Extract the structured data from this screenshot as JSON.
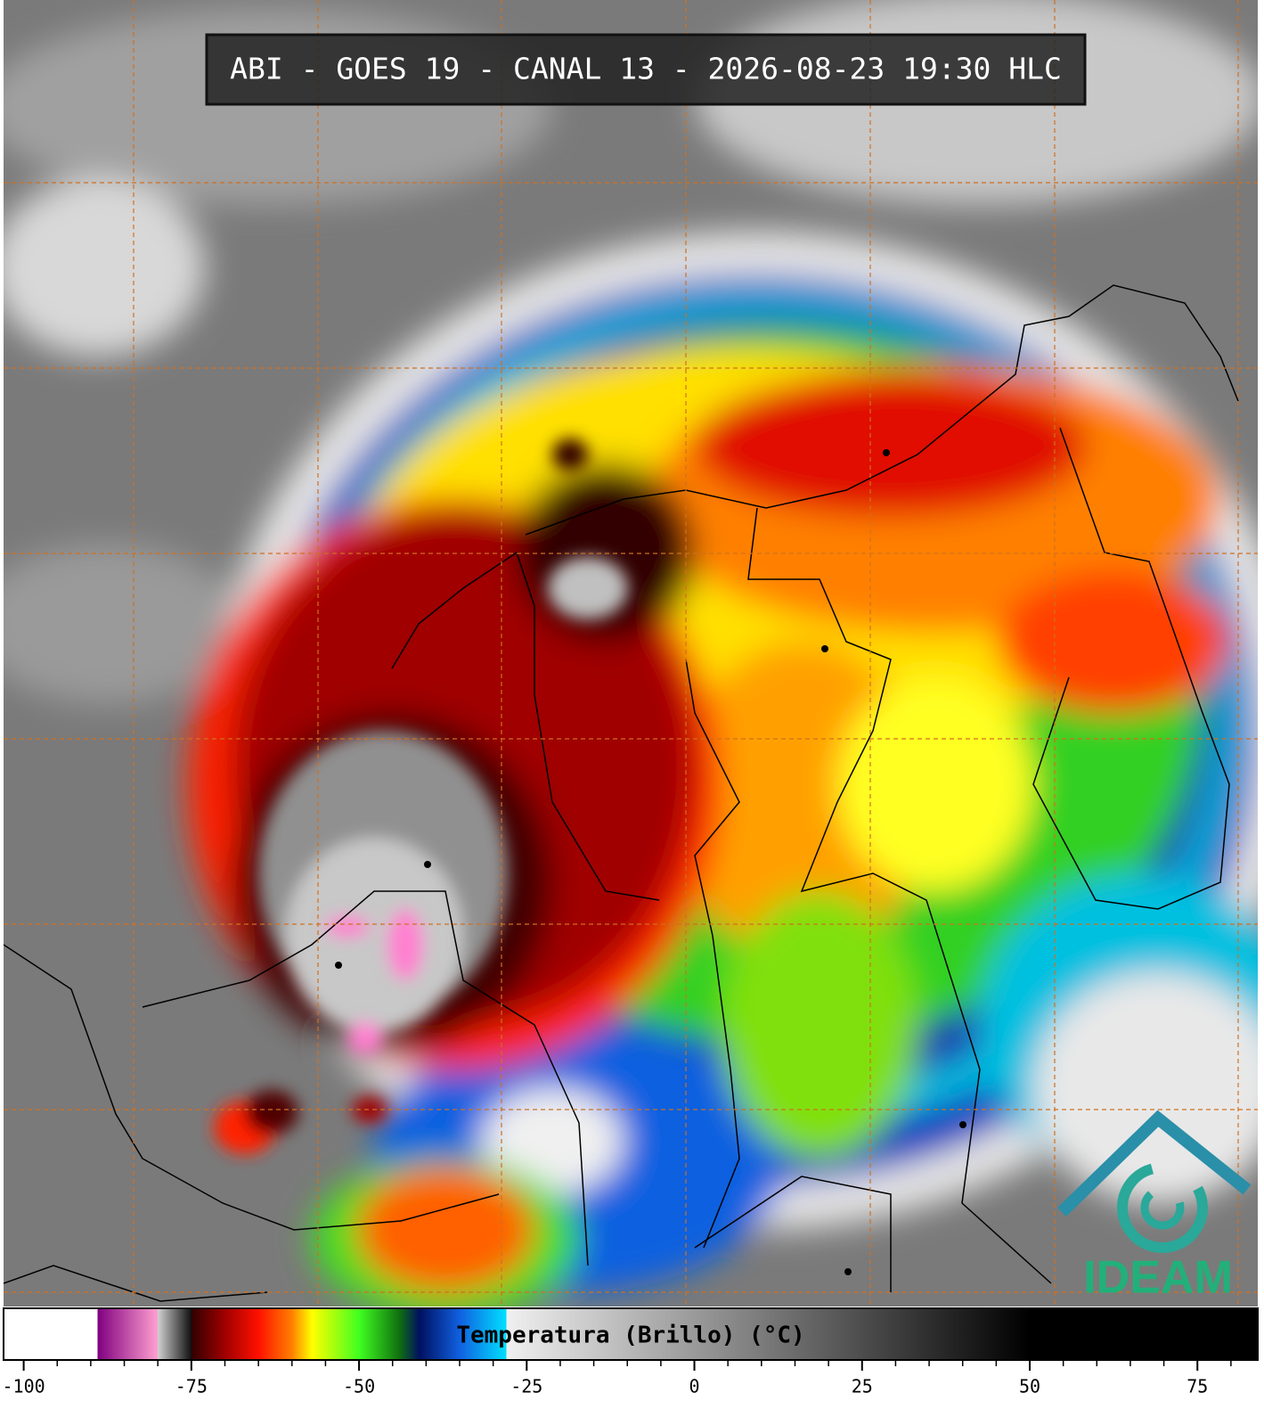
{
  "header": {
    "title": "ABI - GOES 19 - CANAL 13 - 2026-08-23 19:30 HLC"
  },
  "logo": {
    "text": "IDEAM"
  },
  "colorbar": {
    "label": "Temperatura (Brillo) (°C)",
    "xlim": [
      -103,
      84
    ],
    "xticks": [
      -100,
      -75,
      -50,
      -25,
      0,
      25,
      50,
      75
    ],
    "minor_ticks": [
      -95,
      -90,
      -85,
      -80,
      -70,
      -65,
      -60,
      -55,
      -45,
      -40,
      -35,
      -30,
      -20,
      -15,
      -10,
      -5,
      5,
      10,
      15,
      20,
      30,
      35,
      40,
      45,
      55,
      60,
      65,
      70,
      80
    ],
    "colormap": [
      {
        "value": -103,
        "color": "#ffffff"
      },
      {
        "value": -89,
        "color": "#ffffff"
      },
      {
        "value": -89,
        "color": "#800080"
      },
      {
        "value": -80,
        "color": "#ffa0d0"
      },
      {
        "value": -80,
        "color": "#d0d0d0"
      },
      {
        "value": -75,
        "color": "#101010"
      },
      {
        "value": -75,
        "color": "#300000"
      },
      {
        "value": -70,
        "color": "#a00000"
      },
      {
        "value": -65,
        "color": "#ff1000"
      },
      {
        "value": -60,
        "color": "#ff8000"
      },
      {
        "value": -57,
        "color": "#ffff00"
      },
      {
        "value": -50,
        "color": "#40ff20"
      },
      {
        "value": -44,
        "color": "#107010"
      },
      {
        "value": -41,
        "color": "#001060"
      },
      {
        "value": -35,
        "color": "#1060e0"
      },
      {
        "value": -28,
        "color": "#00e0ff"
      },
      {
        "value": -28,
        "color": "#f0f0f0"
      },
      {
        "value": 50,
        "color": "#000000"
      },
      {
        "value": 84,
        "color": "#000000"
      }
    ]
  }
}
